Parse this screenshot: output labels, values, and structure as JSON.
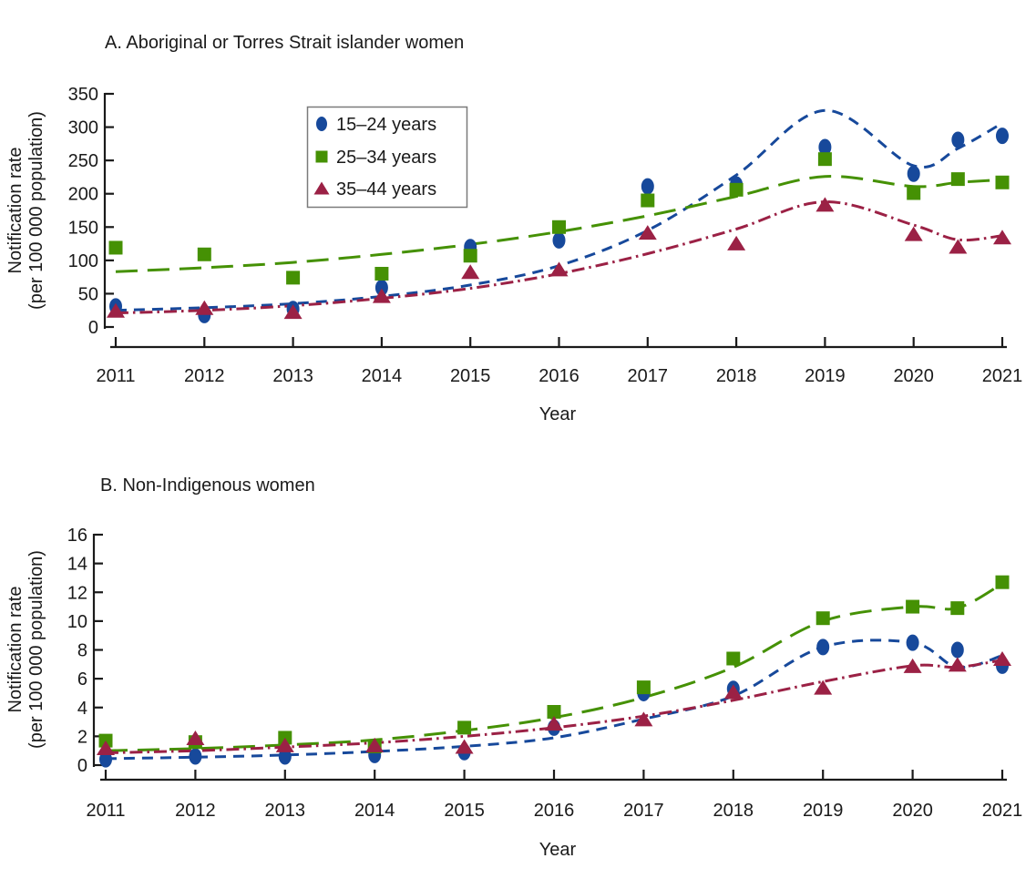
{
  "figure": {
    "background": "#ffffff",
    "text_color": "#1a1a1a",
    "axis_color": "#1a1a1a",
    "legend_border_color": "#7a7a7a"
  },
  "chart_data": [
    {
      "panel": "A",
      "type": "scatter",
      "title": "A. Aboriginal or Torres Strait islander women",
      "xlabel": "Year",
      "ylabel": "Notification rate (per 100 000 population)",
      "ylabel_lines": [
        "Notification rate",
        "(per 100 000 population)"
      ],
      "x": [
        2011,
        2012,
        2013,
        2014,
        2015,
        2016,
        2017,
        2018,
        2019,
        2020,
        2020.5,
        2021
      ],
      "x_tick_labels": [
        "2011",
        "2012",
        "2013",
        "2014",
        "2015",
        "2016",
        "2017",
        "2018",
        "2019",
        "2020",
        "2021"
      ],
      "x_tick_years": [
        2011,
        2012,
        2013,
        2014,
        2015,
        2016,
        2017,
        2018,
        2019,
        2020,
        2021
      ],
      "ylim": [
        0,
        350
      ],
      "ytick_step": 50,
      "grid": false,
      "legend_position": "upper-center-left-inside",
      "series": [
        {
          "name": "15–24 years",
          "marker": "circle",
          "color": "#17499b",
          "line_style": "dashed",
          "values": [
            31,
            18,
            27,
            59,
            120,
            130,
            211,
            214,
            270,
            230,
            281,
            287
          ],
          "trend": [
            25,
            29,
            35,
            46,
            63,
            92,
            145,
            228,
            325,
            242,
            268,
            306
          ]
        },
        {
          "name": "25–34 years",
          "marker": "square",
          "color": "#459104",
          "line_style": "long-dash",
          "values": [
            119,
            109,
            74,
            80,
            107,
            150,
            190,
            206,
            252,
            201,
            222,
            217
          ],
          "trend": [
            83,
            89,
            97,
            109,
            124,
            143,
            167,
            196,
            226,
            211,
            217,
            221
          ]
        },
        {
          "name": "35–44 years",
          "marker": "triangle",
          "color": "#9b2145",
          "line_style": "dash-dot",
          "values": [
            25,
            29,
            23,
            47,
            83,
            87,
            142,
            126,
            184,
            140,
            121,
            135
          ],
          "trend": [
            21,
            25,
            32,
            43,
            58,
            80,
            110,
            147,
            188,
            153,
            131,
            137
          ]
        }
      ]
    },
    {
      "panel": "B",
      "type": "scatter",
      "title": "B. Non-Indigenous women",
      "xlabel": "Year",
      "ylabel": "Notification rate (per 100 000 population)",
      "ylabel_lines": [
        "Notification rate",
        "(per 100 000 population)"
      ],
      "x": [
        2011,
        2012,
        2013,
        2014,
        2015,
        2016,
        2017,
        2018,
        2019,
        2020,
        2020.5,
        2021
      ],
      "x_tick_labels": [
        "2011",
        "2012",
        "2013",
        "2014",
        "2015",
        "2016",
        "2017",
        "2018",
        "2019",
        "2020",
        "2021"
      ],
      "x_tick_years": [
        2011,
        2012,
        2013,
        2014,
        2015,
        2016,
        2017,
        2018,
        2019,
        2020,
        2021
      ],
      "ylim": [
        0,
        16
      ],
      "ytick_step": 2,
      "grid": false,
      "legend_position": "none",
      "series": [
        {
          "name": "15–24 years",
          "marker": "circle",
          "color": "#17499b",
          "line_style": "dashed",
          "values": [
            0.4,
            0.6,
            0.6,
            0.7,
            0.9,
            2.6,
            5.0,
            5.3,
            8.2,
            8.5,
            8.0,
            6.9
          ],
          "trend": [
            0.45,
            0.55,
            0.7,
            0.95,
            1.3,
            1.9,
            3.2,
            4.8,
            8.2,
            8.5,
            6.8,
            7.6
          ]
        },
        {
          "name": "25–34 years",
          "marker": "square",
          "color": "#459104",
          "line_style": "long-dash",
          "values": [
            1.7,
            1.6,
            1.9,
            1.3,
            2.6,
            3.7,
            5.4,
            7.4,
            10.2,
            11.0,
            10.9,
            12.7
          ],
          "trend": [
            1.0,
            1.15,
            1.4,
            1.75,
            2.4,
            3.3,
            4.7,
            6.8,
            10.0,
            11.0,
            10.9,
            12.6
          ]
        },
        {
          "name": "35–44 years",
          "marker": "triangle",
          "color": "#9b2145",
          "line_style": "dash-dot",
          "values": [
            1.2,
            1.9,
            1.4,
            1.4,
            1.3,
            2.9,
            3.2,
            5.1,
            5.4,
            6.9,
            7.0,
            7.4
          ],
          "trend": [
            0.85,
            1.0,
            1.25,
            1.55,
            2.0,
            2.6,
            3.4,
            4.5,
            5.8,
            6.9,
            6.8,
            7.3
          ]
        }
      ]
    }
  ]
}
